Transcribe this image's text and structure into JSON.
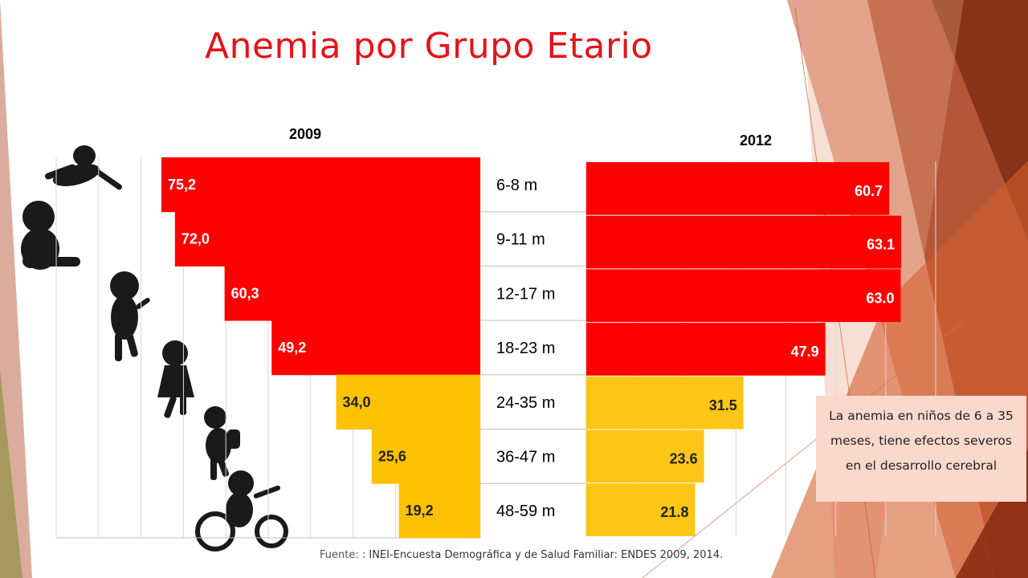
{
  "title": "Anemia por Grupo Etario",
  "note": "La anemia en niños de 6 a 35 meses, tiene efectos severos en el desarrollo cerebral",
  "source": {
    "label": "Fuente:",
    "text": ": INEI-Encuesta Demográfica y de Salud Familiar: ENDES  2009, 2014."
  },
  "colors": {
    "high": "#ff0000",
    "low": "#fcc100",
    "low_2012": "#fdc515",
    "title": "#e3141b",
    "note_bg": "#fbd8cc"
  },
  "chart_data": [
    {
      "type": "bar",
      "orientation": "horizontal",
      "title": "2009",
      "categories": [
        "6-8 m",
        "9-11 m",
        "12-17 m",
        "18-23 m",
        "24-35 m",
        "36-47 m",
        "48-59 m"
      ],
      "values": [
        75.2,
        72.0,
        60.3,
        49.2,
        34.0,
        25.6,
        19.2
      ],
      "labels": [
        "75,2",
        "72,0",
        "60,3",
        "49,2",
        "34,0",
        "25,6",
        "19,2"
      ],
      "direction": "right-to-left",
      "xlim": [
        0,
        100
      ],
      "grid": true
    },
    {
      "type": "bar",
      "orientation": "horizontal",
      "title": "2012",
      "categories": [
        "6-8 m",
        "9-11 m",
        "12-17 m",
        "18-23 m",
        "24-35 m",
        "36-47 m",
        "48-59 m"
      ],
      "values": [
        60.7,
        63.1,
        63.0,
        47.9,
        31.5,
        23.6,
        21.8
      ],
      "labels": [
        "60.7",
        "63.1",
        "63.0",
        "47.9",
        "31.5",
        "23.6",
        "21.8"
      ],
      "direction": "left-to-right",
      "xlim": [
        0,
        70
      ],
      "grid": true
    }
  ]
}
